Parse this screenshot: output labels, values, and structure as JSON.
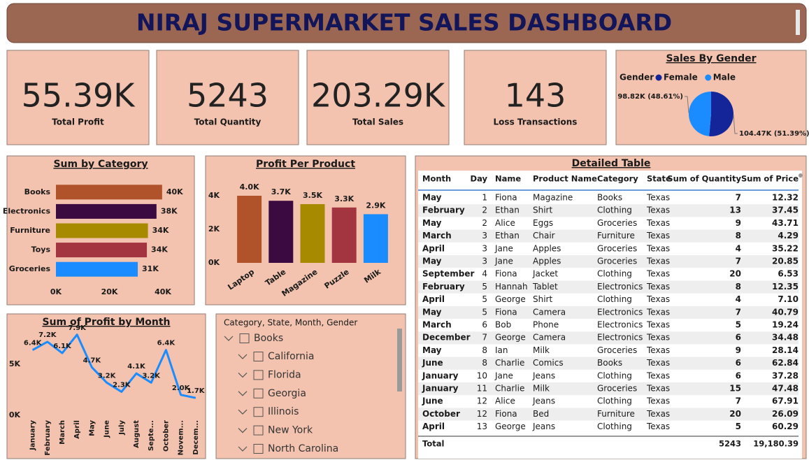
{
  "header": {
    "title": "NIRAJ SUPERMARKET SALES DASHBOARD"
  },
  "kpis": [
    {
      "value": "55.39K",
      "label": "Total Profit"
    },
    {
      "value": "5243",
      "label": "Total Quantity"
    },
    {
      "value": "203.29K",
      "label": "Total Sales"
    },
    {
      "value": "143",
      "label": "Loss Transactions"
    }
  ],
  "chart_data": [
    {
      "type": "pie",
      "title": "Sales By Gender",
      "legend_title": "Gender",
      "categories": [
        "Female",
        "Male"
      ],
      "values": [
        104470,
        98820
      ],
      "value_labels": [
        "104.47K (51.39%)",
        "98.82K (48.61%)"
      ],
      "colors": [
        "#14259a",
        "#1a8cff"
      ]
    },
    {
      "type": "barh",
      "title": "Sum by Category",
      "categories": [
        "Books",
        "Electronics",
        "Furniture",
        "Toys",
        "Groceries"
      ],
      "values": [
        39700,
        37600,
        34400,
        34000,
        30600
      ],
      "value_labels": [
        "40K",
        "38K",
        "34K",
        "34K",
        "31K"
      ],
      "colors": [
        "#b0532a",
        "#3a0a40",
        "#a88a00",
        "#a33540",
        "#1a8cff"
      ],
      "xlim": [
        0,
        40000
      ],
      "xticks": [
        {
          "value": 0,
          "label": "0K"
        },
        {
          "value": 20000,
          "label": "20K"
        },
        {
          "value": 40000,
          "label": "40K"
        }
      ]
    },
    {
      "type": "bar",
      "title": "Profit Per Product",
      "categories": [
        "Laptop",
        "Table",
        "Magazine",
        "Puzzle",
        "Milk"
      ],
      "values": [
        4000,
        3700,
        3500,
        3300,
        2900
      ],
      "value_labels": [
        "4.0K",
        "3.7K",
        "3.5K",
        "3.3K",
        "2.9K"
      ],
      "colors": [
        "#b0532a",
        "#3a0a40",
        "#a88a00",
        "#a33540",
        "#1a8cff"
      ],
      "ylim": [
        0,
        4800
      ],
      "yticks": [
        {
          "value": 0,
          "label": "0K"
        },
        {
          "value": 2000,
          "label": "2K"
        },
        {
          "value": 4000,
          "label": "4K"
        }
      ]
    },
    {
      "type": "line",
      "title": "Sum of Profit by Month",
      "categories": [
        "January",
        "February",
        "March",
        "April",
        "May",
        "June",
        "July",
        "August",
        "Septe...",
        "October",
        "Novem...",
        "Decem..."
      ],
      "values": [
        6400,
        7200,
        6100,
        7900,
        4700,
        3200,
        2300,
        4100,
        3200,
        6400,
        2000,
        1700
      ],
      "value_labels": [
        "6.4K",
        "7.2K",
        "6.1K",
        "7.9K",
        "4.7K",
        "3.2K",
        "2.3K",
        "4.1K",
        "3.2K",
        "6.4K",
        "2.0K",
        "1.7K"
      ],
      "color": "#1a8cff",
      "ylim": [
        0,
        8500
      ],
      "yticks": [
        {
          "value": 0,
          "label": "0K"
        },
        {
          "value": 5000,
          "label": "5K"
        }
      ]
    }
  ],
  "table": {
    "title": "Detailed Table",
    "columns": [
      "Month",
      "Day",
      "Name",
      "Product Name",
      "Category",
      "State",
      "Sum of Quantity",
      "Sum of Price"
    ],
    "rows": [
      [
        "May",
        "1",
        "Fiona",
        "Magazine",
        "Books",
        "Texas",
        "7",
        "12.32"
      ],
      [
        "February",
        "2",
        "Ethan",
        "Shirt",
        "Clothing",
        "Texas",
        "13",
        "37.45"
      ],
      [
        "May",
        "2",
        "Alice",
        "Eggs",
        "Groceries",
        "Texas",
        "9",
        "43.71"
      ],
      [
        "March",
        "3",
        "Ethan",
        "Chair",
        "Furniture",
        "Texas",
        "8",
        "4.29"
      ],
      [
        "April",
        "3",
        "Jane",
        "Apples",
        "Groceries",
        "Texas",
        "4",
        "35.22"
      ],
      [
        "May",
        "3",
        "Jane",
        "Apples",
        "Groceries",
        "Texas",
        "7",
        "20.85"
      ],
      [
        "September",
        "4",
        "Fiona",
        "Jacket",
        "Clothing",
        "Texas",
        "20",
        "6.53"
      ],
      [
        "February",
        "5",
        "Hannah",
        "Tablet",
        "Electronics",
        "Texas",
        "8",
        "12.35"
      ],
      [
        "April",
        "5",
        "George",
        "Shirt",
        "Clothing",
        "Texas",
        "4",
        "7.10"
      ],
      [
        "May",
        "5",
        "Fiona",
        "Camera",
        "Electronics",
        "Texas",
        "7",
        "40.79"
      ],
      [
        "March",
        "6",
        "Bob",
        "Phone",
        "Electronics",
        "Texas",
        "5",
        "19.24"
      ],
      [
        "December",
        "7",
        "George",
        "Camera",
        "Electronics",
        "Texas",
        "6",
        "34.48"
      ],
      [
        "May",
        "8",
        "Ian",
        "Milk",
        "Groceries",
        "Texas",
        "9",
        "28.14"
      ],
      [
        "June",
        "8",
        "Charlie",
        "Comics",
        "Books",
        "Texas",
        "6",
        "62.84"
      ],
      [
        "January",
        "10",
        "Jane",
        "Jeans",
        "Clothing",
        "Texas",
        "6",
        "37.28"
      ],
      [
        "January",
        "11",
        "Charlie",
        "Milk",
        "Groceries",
        "Texas",
        "15",
        "47.48"
      ],
      [
        "June",
        "12",
        "Alice",
        "Jeans",
        "Clothing",
        "Texas",
        "7",
        "67.91"
      ],
      [
        "October",
        "12",
        "Fiona",
        "Bed",
        "Furniture",
        "Texas",
        "20",
        "26.09"
      ],
      [
        "April",
        "13",
        "George",
        "Jeans",
        "Clothing",
        "Texas",
        "5",
        "60.29"
      ]
    ],
    "total": {
      "label": "Total",
      "quantity": "5243",
      "price": "19,180.39"
    }
  },
  "slicer": {
    "title": "Category, State, Month, Gender",
    "items": [
      "Books",
      "California",
      "Florida",
      "Georgia",
      "Illinois",
      "New York",
      "North Carolina"
    ]
  }
}
